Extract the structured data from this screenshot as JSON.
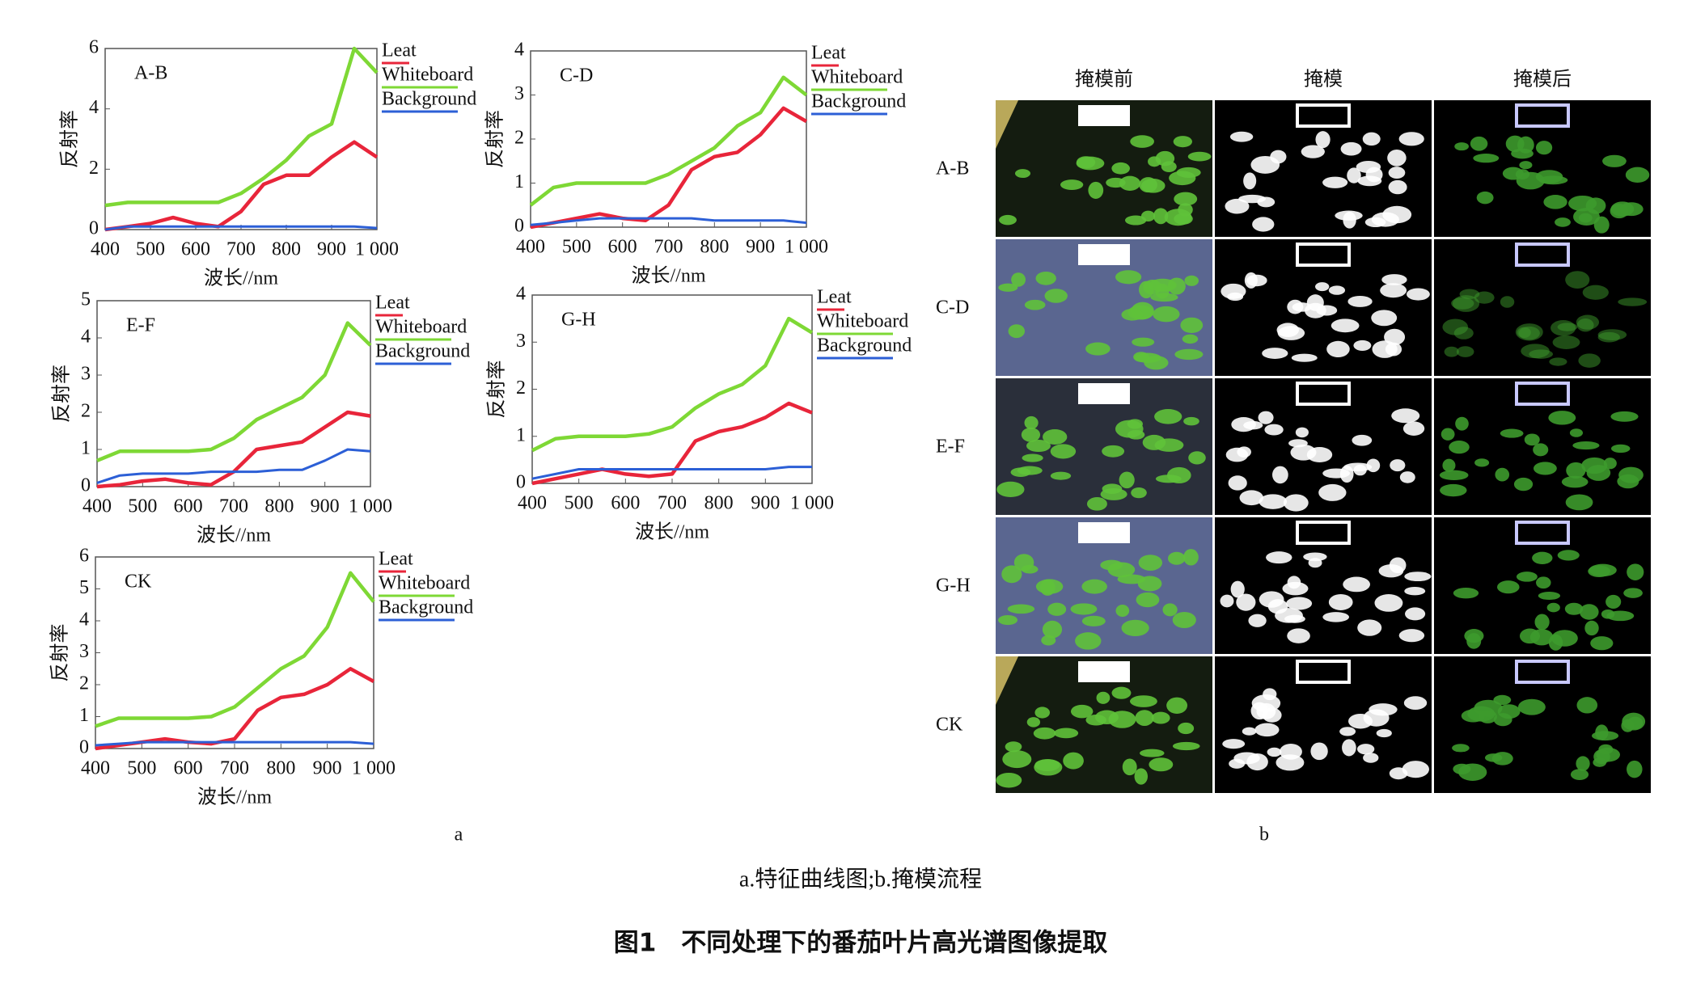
{
  "chart_data": [
    {
      "type": "line",
      "title": "A-B",
      "y_label": "反射率",
      "x_label": "波长//nm",
      "x": [
        400,
        450,
        500,
        550,
        600,
        650,
        700,
        750,
        800,
        850,
        900,
        950,
        1000
      ],
      "xlim": [
        400,
        1000
      ],
      "xticks": [
        400,
        500,
        600,
        700,
        800,
        900,
        {
          "value": 1000,
          "label": "1 000"
        }
      ],
      "ylim": [
        0,
        6
      ],
      "yticks": [
        0,
        2,
        4,
        6
      ],
      "series": [
        {
          "name": "Leat",
          "color": "#e8253a",
          "values": [
            0,
            0.1,
            0.2,
            0.4,
            0.2,
            0.1,
            0.6,
            1.5,
            1.8,
            1.8,
            2.4,
            2.9,
            2.4
          ]
        },
        {
          "name": "Whiteboard",
          "color": "#7ed835",
          "values": [
            0.8,
            0.9,
            0.9,
            0.9,
            0.9,
            0.9,
            1.2,
            1.7,
            2.3,
            3.1,
            3.5,
            6,
            5.2
          ]
        },
        {
          "name": "Background",
          "color": "#2c5fd6",
          "values": [
            0,
            0.1,
            0.1,
            0.1,
            0.1,
            0.1,
            0.1,
            0.1,
            0.1,
            0.1,
            0.1,
            0.1,
            0.05
          ]
        }
      ]
    },
    {
      "type": "line",
      "title": "C-D",
      "y_label": "反射率",
      "x_label": "波长//nm",
      "x": [
        400,
        450,
        500,
        550,
        600,
        650,
        700,
        750,
        800,
        850,
        900,
        950,
        1000
      ],
      "xlim": [
        400,
        1000
      ],
      "xticks": [
        400,
        500,
        600,
        700,
        800,
        900,
        {
          "value": 1000,
          "label": "1 000"
        }
      ],
      "ylim": [
        0,
        4
      ],
      "yticks": [
        0,
        1,
        2,
        3,
        4
      ],
      "series": [
        {
          "name": "Leat",
          "color": "#e8253a",
          "values": [
            0,
            0.1,
            0.2,
            0.3,
            0.2,
            0.15,
            0.5,
            1.3,
            1.6,
            1.7,
            2.1,
            2.7,
            2.4
          ]
        },
        {
          "name": "Whiteboard",
          "color": "#7ed835",
          "values": [
            0.5,
            0.9,
            1,
            1,
            1,
            1,
            1.2,
            1.5,
            1.8,
            2.3,
            2.6,
            3.4,
            3
          ]
        },
        {
          "name": "Background",
          "color": "#2c5fd6",
          "values": [
            0.05,
            0.1,
            0.15,
            0.2,
            0.2,
            0.2,
            0.2,
            0.2,
            0.15,
            0.15,
            0.15,
            0.15,
            0.1
          ]
        }
      ]
    },
    {
      "type": "line",
      "title": "E-F",
      "y_label": "反射率",
      "x_label": "波长//nm",
      "x": [
        400,
        450,
        500,
        550,
        600,
        650,
        700,
        750,
        800,
        850,
        900,
        950,
        1000
      ],
      "xlim": [
        400,
        1000
      ],
      "xticks": [
        400,
        500,
        600,
        700,
        800,
        900,
        {
          "value": 1000,
          "label": "1 000"
        }
      ],
      "ylim": [
        0,
        5
      ],
      "yticks": [
        0,
        1,
        2,
        3,
        4,
        5
      ],
      "series": [
        {
          "name": "Leat",
          "color": "#e8253a",
          "values": [
            0,
            0.05,
            0.15,
            0.2,
            0.1,
            0.05,
            0.4,
            1,
            1.1,
            1.2,
            1.6,
            2,
            1.9
          ]
        },
        {
          "name": "Whiteboard",
          "color": "#7ed835",
          "values": [
            0.7,
            0.95,
            0.95,
            0.95,
            0.95,
            1,
            1.3,
            1.8,
            2.1,
            2.4,
            3,
            4.4,
            3.8
          ]
        },
        {
          "name": "Background",
          "color": "#2c5fd6",
          "values": [
            0.1,
            0.3,
            0.35,
            0.35,
            0.35,
            0.4,
            0.4,
            0.4,
            0.45,
            0.45,
            0.7,
            1,
            0.95
          ]
        }
      ]
    },
    {
      "type": "line",
      "title": "G-H",
      "y_label": "反射率",
      "x_label": "波长//nm",
      "x": [
        400,
        450,
        500,
        550,
        600,
        650,
        700,
        750,
        800,
        850,
        900,
        950,
        1000
      ],
      "xlim": [
        400,
        1000
      ],
      "xticks": [
        400,
        500,
        600,
        700,
        800,
        900,
        {
          "value": 1000,
          "label": "1 000"
        }
      ],
      "ylim": [
        0,
        4
      ],
      "yticks": [
        0,
        1,
        2,
        3,
        4
      ],
      "series": [
        {
          "name": "Leat",
          "color": "#e8253a",
          "values": [
            0,
            0.1,
            0.2,
            0.3,
            0.2,
            0.15,
            0.2,
            0.9,
            1.1,
            1.2,
            1.4,
            1.7,
            1.5
          ]
        },
        {
          "name": "Whiteboard",
          "color": "#7ed835",
          "values": [
            0.7,
            0.95,
            1,
            1,
            1,
            1.05,
            1.2,
            1.6,
            1.9,
            2.1,
            2.5,
            3.5,
            3.2
          ]
        },
        {
          "name": "Background",
          "color": "#2c5fd6",
          "values": [
            0.1,
            0.2,
            0.3,
            0.3,
            0.3,
            0.3,
            0.3,
            0.3,
            0.3,
            0.3,
            0.3,
            0.35,
            0.35
          ]
        }
      ]
    },
    {
      "type": "line",
      "title": "CK",
      "y_label": "反射率",
      "x_label": "波长//nm",
      "x": [
        400,
        450,
        500,
        550,
        600,
        650,
        700,
        750,
        800,
        850,
        900,
        950,
        1000
      ],
      "xlim": [
        400,
        1000
      ],
      "xticks": [
        400,
        500,
        600,
        700,
        800,
        900,
        {
          "value": 1000,
          "label": "1 000"
        }
      ],
      "ylim": [
        0,
        6
      ],
      "yticks": [
        0,
        1,
        2,
        3,
        4,
        5,
        6
      ],
      "series": [
        {
          "name": "Leat",
          "color": "#e8253a",
          "values": [
            0,
            0.1,
            0.2,
            0.3,
            0.2,
            0.15,
            0.3,
            1.2,
            1.6,
            1.7,
            2,
            2.5,
            2.1
          ]
        },
        {
          "name": "Whiteboard",
          "color": "#7ed835",
          "values": [
            0.7,
            0.95,
            0.95,
            0.95,
            0.95,
            1,
            1.3,
            1.9,
            2.5,
            2.9,
            3.8,
            5.5,
            4.6
          ]
        },
        {
          "name": "Background",
          "color": "#2c5fd6",
          "values": [
            0.1,
            0.15,
            0.2,
            0.2,
            0.2,
            0.2,
            0.2,
            0.2,
            0.2,
            0.2,
            0.2,
            0.2,
            0.15
          ]
        }
      ]
    }
  ],
  "panel_a_label": "a",
  "panel_b": {
    "label": "b",
    "columns": [
      "掩模前",
      "掩模",
      "掩模后"
    ],
    "rows": [
      "A-B",
      "C-D",
      "E-F",
      "G-H",
      "CK"
    ]
  },
  "caption": "a.特征曲线图;b.掩模流程",
  "figure_title": "图1　不同处理下的番茄叶片高光谱图像提取"
}
